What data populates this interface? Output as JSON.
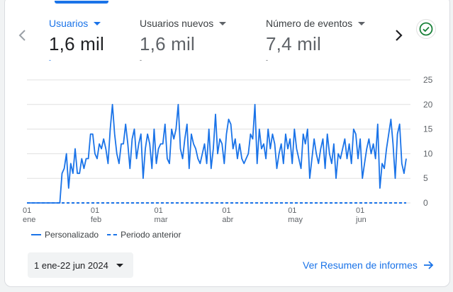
{
  "metrics": [
    {
      "label": "Usuarios",
      "value": "1,6 mil",
      "sub": "-"
    },
    {
      "label": "Usuarios nuevos",
      "value": "1,6 mil",
      "sub": "-"
    },
    {
      "label": "Número de eventos",
      "value": "7,4 mil",
      "sub": "-"
    }
  ],
  "legend": {
    "current": "Personalizado",
    "previous": "Periodo anterior"
  },
  "date_range": "1 ene-22 jun 2024",
  "report_link": "Ver Resumen de informes",
  "icons": {
    "prev": "chevron-left-icon",
    "next": "chevron-right-icon",
    "status": "check-circle-icon",
    "link": "arrow-right-icon"
  },
  "colors": {
    "accent": "#1a73e8",
    "success": "#188038",
    "grid": "#e0e0e0"
  },
  "chart_data": {
    "type": "line",
    "ylim": [
      0,
      25
    ],
    "yticks": [
      0,
      5,
      10,
      15,
      20,
      25
    ],
    "xticks": [
      {
        "day": 0,
        "num": "01",
        "mon": "ene"
      },
      {
        "day": 31,
        "num": "01",
        "mon": "feb"
      },
      {
        "day": 60,
        "num": "01",
        "mon": "mar"
      },
      {
        "day": 91,
        "num": "01",
        "mon": "abr"
      },
      {
        "day": 121,
        "num": "01",
        "mon": "may"
      },
      {
        "day": 152,
        "num": "01",
        "mon": "jun"
      }
    ],
    "series": [
      {
        "name": "Personalizado",
        "style": "solid",
        "values": [
          0,
          0,
          0,
          0,
          0,
          0,
          0,
          0,
          0,
          0,
          0,
          0,
          0,
          0,
          0,
          0,
          6,
          7,
          10,
          3,
          8,
          6,
          11,
          6,
          6,
          9,
          7,
          9,
          9,
          14,
          14,
          10,
          9,
          12,
          11,
          13,
          11,
          8,
          15,
          20,
          14,
          10,
          8,
          12,
          12,
          16,
          12,
          7,
          13,
          15,
          9,
          12,
          14,
          5,
          11,
          14,
          12,
          7,
          15,
          8,
          11,
          12,
          12,
          16,
          9,
          8,
          15,
          13,
          15,
          20,
          11,
          9,
          13,
          16,
          7,
          14,
          12,
          11,
          9,
          8,
          10,
          12,
          8,
          15,
          7,
          11,
          18,
          10,
          13,
          12,
          8,
          14,
          17,
          16,
          11,
          13,
          9,
          12,
          9,
          8,
          9,
          10,
          14,
          13,
          20,
          8,
          15,
          11,
          12,
          9,
          15,
          11,
          14,
          12,
          7,
          10,
          12,
          8,
          14,
          11,
          13,
          8,
          15,
          11,
          9,
          7,
          14,
          12,
          15,
          5,
          9,
          13,
          10,
          8,
          11,
          13,
          7,
          14,
          10,
          8,
          12,
          5,
          10,
          9,
          11,
          13,
          9,
          12,
          8,
          15,
          14,
          9,
          13,
          5,
          8,
          11,
          13,
          10,
          12,
          9,
          16,
          3,
          8,
          7,
          11,
          14,
          17,
          12,
          5,
          14,
          16,
          8,
          6,
          9
        ]
      },
      {
        "name": "Periodo anterior",
        "style": "dashed",
        "values": []
      }
    ]
  }
}
